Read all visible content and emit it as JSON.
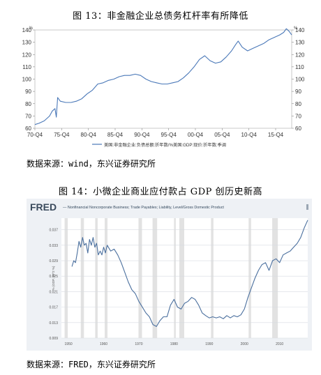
{
  "figure1": {
    "caption": "图 13：非金融企业总债务杠杆率有所降低",
    "source": "数据来源：wind，东兴证券研究所",
    "chart_data": {
      "type": "line",
      "title": "",
      "unit_left": "%",
      "unit_right": "%",
      "legend": "美国:非金融企业:负债总额:折年数/%美国:GDP:现价:折年数:季调",
      "legend_position": "bottom-center",
      "ylim": [
        60,
        140
      ],
      "yticks": [
        60,
        70,
        80,
        90,
        100,
        110,
        120,
        130,
        140
      ],
      "xtick_labels": [
        "70-Q4",
        "75-Q4",
        "80-Q4",
        "85-Q4",
        "90-Q4",
        "95-Q4",
        "00-Q4",
        "05-Q4",
        "10-Q4",
        "15-Q4"
      ],
      "xrange": [
        1970.75,
        2018.75
      ],
      "series": [
        {
          "name": "美国:非金融企业:负债总额:折年数/%美国:GDP:现价:折年数:季调",
          "color": "#4a78b8",
          "x": [
            1970.75,
            1971.5,
            1972.5,
            1973.5,
            1974.0,
            1974.5,
            1974.75,
            1975.0,
            1975.5,
            1976.5,
            1977.5,
            1978.5,
            1979.5,
            1980.5,
            1981.5,
            1982.5,
            1983.5,
            1984.5,
            1985.5,
            1986.5,
            1987.5,
            1988.5,
            1989.5,
            1990.5,
            1991.5,
            1992.5,
            1993.5,
            1994.5,
            1995.5,
            1996.5,
            1997.5,
            1998.5,
            1999.5,
            2000.5,
            2001.5,
            2002.5,
            2003.5,
            2004.5,
            2005.5,
            2006.5,
            2007.5,
            2008.25,
            2008.75,
            2009.5,
            2010.5,
            2011.5,
            2012.5,
            2013.5,
            2014.5,
            2015.5,
            2016.5,
            2017.25,
            2017.75,
            2018.25,
            2018.75
          ],
          "values": [
            63,
            64,
            66,
            70,
            74,
            76,
            69,
            85,
            82,
            81,
            81,
            82,
            84,
            88,
            91,
            96,
            97,
            99,
            100,
            102,
            103,
            103,
            104,
            103,
            100,
            98,
            97,
            96,
            96,
            97,
            98,
            101,
            105,
            110,
            116,
            119,
            115,
            113,
            114,
            118,
            123,
            128,
            131,
            126,
            123,
            125,
            127,
            129,
            132,
            134,
            136,
            138,
            141,
            139,
            136
          ]
        }
      ]
    }
  },
  "figure2": {
    "caption": "图 14：小微企业商业应付款占 GDP 创历史新高",
    "source": "数据来源：FRED，东兴证券研究所",
    "fred_logo": "FRED",
    "chart_data": {
      "type": "line",
      "title": "— Nonfinancial Noncorporate Business; Trade Payables; Liability, Level/Gross Domestic Product",
      "ylabel": "% (GDP, 10^2 %)",
      "ylim": [
        0.009,
        0.04
      ],
      "yticks": [
        0.009,
        0.013,
        0.017,
        0.021,
        0.025,
        0.029,
        0.033,
        0.037
      ],
      "yticks_printed": [
        "0.009",
        "0.013",
        "0.017",
        "0.021",
        "0.025",
        "0.029",
        "0.033",
        "0.037"
      ],
      "xrange": [
        1948,
        2018
      ],
      "xticks": [
        1950,
        1960,
        1970,
        1980,
        1990,
        2000,
        2010
      ],
      "xtick_labels": [
        "1950",
        "1960",
        "1970",
        "1980",
        "1990",
        "2000",
        "2010"
      ],
      "recession_color": "#e2e2e2",
      "recessions": [
        [
          1948.9,
          1949.8
        ],
        [
          1953.5,
          1954.4
        ],
        [
          1957.6,
          1958.3
        ],
        [
          1960.3,
          1961.1
        ],
        [
          1969.9,
          1970.9
        ],
        [
          1973.9,
          1975.2
        ],
        [
          1980.0,
          1980.5
        ],
        [
          1981.5,
          1982.9
        ],
        [
          1990.5,
          1991.2
        ],
        [
          2001.2,
          2001.9
        ],
        [
          2007.9,
          2009.5
        ]
      ],
      "series": [
        {
          "name": "Nonfinancial Noncorporate Business; Trade Payables; Liability, Level/Gross Domestic Product",
          "color": "#4a6f9e",
          "x": [
            1951,
            1951.5,
            1952,
            1952.5,
            1953,
            1953.5,
            1954,
            1954.5,
            1955,
            1955.5,
            1956,
            1956.5,
            1957,
            1957.5,
            1958,
            1958.5,
            1959,
            1959.5,
            1960,
            1960.5,
            1961,
            1962,
            1963,
            1964,
            1965,
            1966,
            1967,
            1968,
            1969,
            1970,
            1971,
            1972,
            1973,
            1974,
            1975,
            1976,
            1977,
            1978,
            1979,
            1980,
            1981,
            1982,
            1983,
            1984,
            1985,
            1986,
            1987,
            1988,
            1989,
            1990,
            1991,
            1992,
            1993,
            1994,
            1995,
            1996,
            1997,
            1998,
            1999,
            2000,
            2001,
            2002,
            2003,
            2004,
            2005,
            2006,
            2007,
            2008,
            2009,
            2010,
            2011,
            2012,
            2013,
            2014,
            2015,
            2016,
            2017,
            2018
          ],
          "values": [
            0.0275,
            0.029,
            0.0285,
            0.031,
            0.034,
            0.0325,
            0.035,
            0.033,
            0.0335,
            0.031,
            0.0345,
            0.033,
            0.035,
            0.0325,
            0.0335,
            0.0305,
            0.0315,
            0.0305,
            0.0325,
            0.031,
            0.033,
            0.0315,
            0.032,
            0.0305,
            0.0285,
            0.026,
            0.0235,
            0.0215,
            0.0205,
            0.0185,
            0.017,
            0.0155,
            0.0145,
            0.0125,
            0.012,
            0.0135,
            0.0145,
            0.0145,
            0.0175,
            0.019,
            0.017,
            0.0165,
            0.018,
            0.0185,
            0.0195,
            0.019,
            0.0175,
            0.0155,
            0.0148,
            0.0142,
            0.0145,
            0.0142,
            0.0145,
            0.014,
            0.0148,
            0.0142,
            0.0148,
            0.0145,
            0.015,
            0.0165,
            0.0195,
            0.022,
            0.0245,
            0.0265,
            0.028,
            0.0285,
            0.0265,
            0.029,
            0.0295,
            0.0285,
            0.0305,
            0.031,
            0.0315,
            0.0325,
            0.0335,
            0.035,
            0.0375,
            0.0395
          ]
        }
      ]
    }
  }
}
